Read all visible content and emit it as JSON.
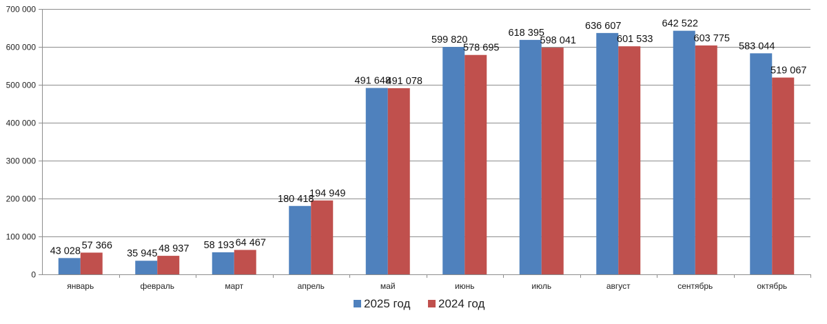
{
  "chart_data": {
    "type": "bar",
    "title": "",
    "xlabel": "",
    "ylabel": "",
    "ylim": [
      0,
      700000
    ],
    "yticks": [
      0,
      100000,
      200000,
      300000,
      400000,
      500000,
      600000,
      700000
    ],
    "ytick_labels": [
      "0",
      "100 000",
      "200 000",
      "300 000",
      "400 000",
      "500 000",
      "600 000",
      "700 000"
    ],
    "grid": true,
    "legend_position": "bottom",
    "categories": [
      "январь",
      "февраль",
      "март",
      "апрель",
      "май",
      "июнь",
      "июль",
      "август",
      "сентябрь",
      "октябрь"
    ],
    "series": [
      {
        "name": "2025 год",
        "color": "#4F81BD",
        "values": [
          43028,
          35945,
          58193,
          180418,
          491648,
          599820,
          618395,
          636607,
          642522,
          583044
        ],
        "labels": [
          "43 028",
          "35 945",
          "58 193",
          "180 418",
          "491 648",
          "599 820",
          "618 395",
          "636 607",
          "642 522",
          "583 044"
        ]
      },
      {
        "name": "2024 год",
        "color": "#C0504D",
        "values": [
          57366,
          48937,
          64467,
          194949,
          491078,
          578695,
          598041,
          601533,
          603775,
          519067
        ],
        "labels": [
          "57 366",
          "48 937",
          "64 467",
          "194 949",
          "491 078",
          "578 695",
          "598 041",
          "601 533",
          "603 775",
          "519 067"
        ]
      }
    ]
  }
}
